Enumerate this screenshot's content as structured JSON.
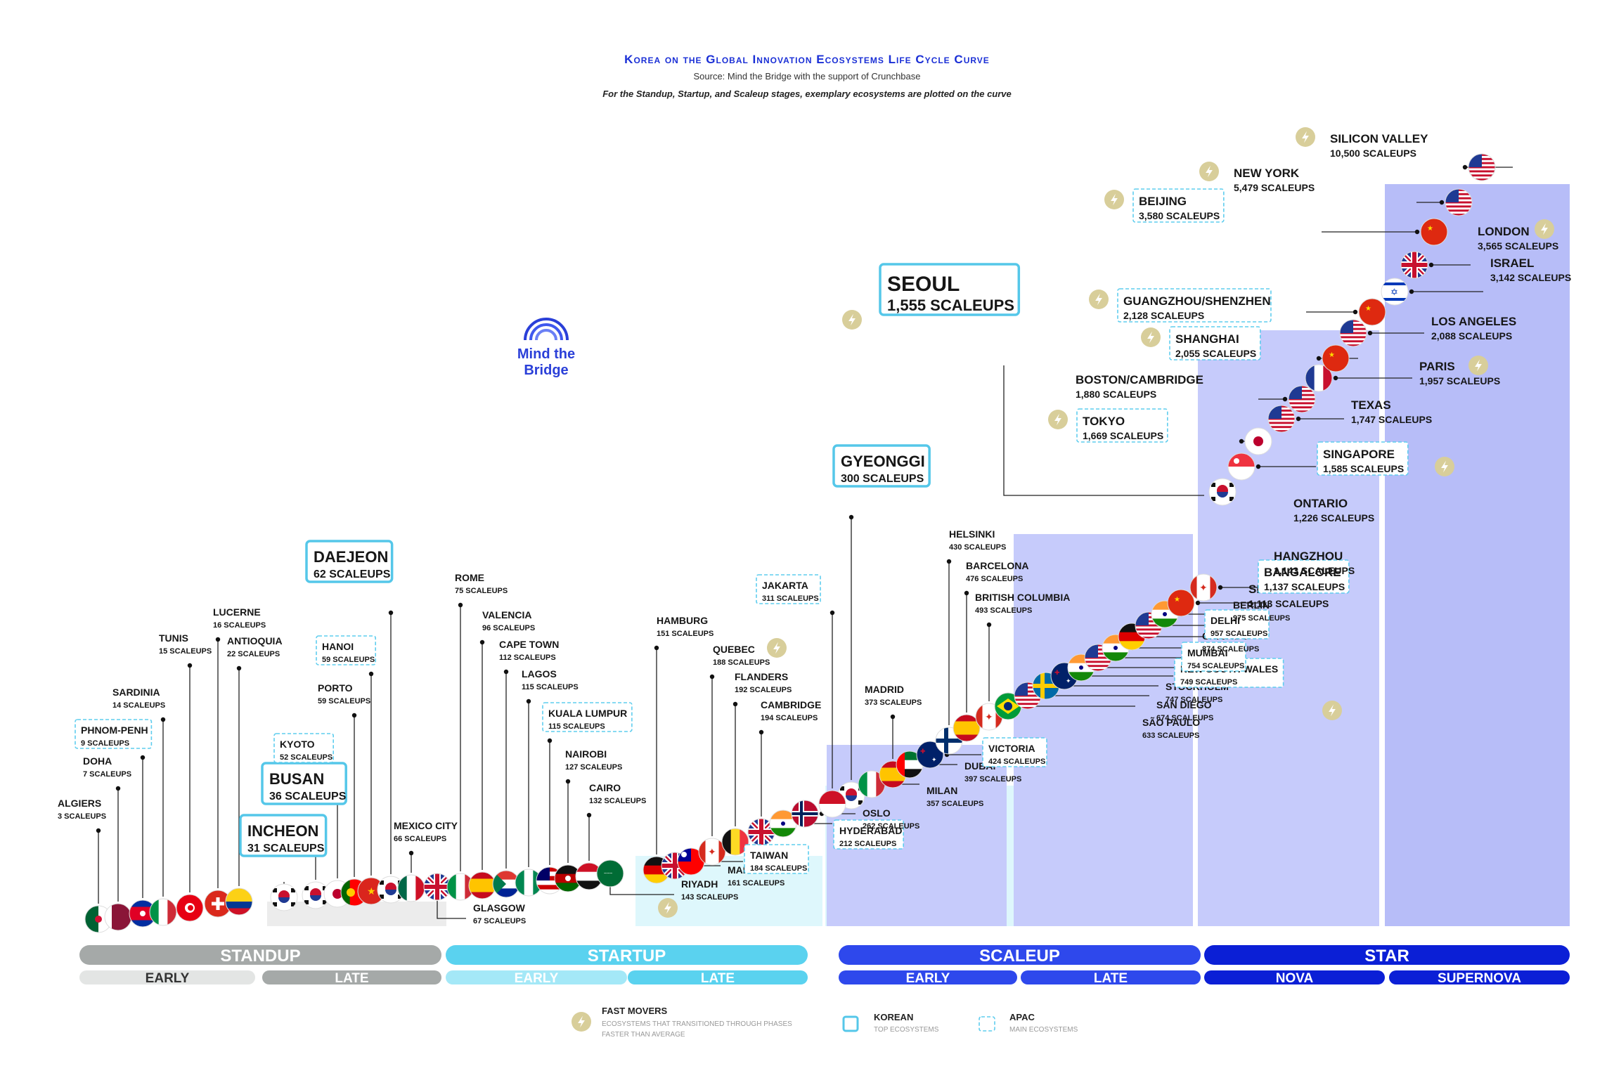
{
  "header": {
    "title": "Korea on the Global Innovation Ecosystems Life Cycle Curve",
    "source": "Source: Mind the Bridge with the support of Crunchbase",
    "note": "For the Standup, Startup, and Scaleup stages, exemplary ecosystems are plotted on the curve"
  },
  "logo": {
    "text": "Mind the Bridge",
    "icon": "bridge-arcs-icon"
  },
  "colors": {
    "standup": "#a5a9a8",
    "standup_early": "#e3e5e4",
    "startup": "#5ad2ef",
    "startup_early": "#a4e8f7",
    "scaleup": "#2e48ec",
    "star": "#0b1fd6",
    "band_startup": "#def7fc",
    "band_scaleup": "#c6cbfb",
    "fast_mover": "#d8ce9a",
    "korean_box": "#55c7e9",
    "apac_box": "#5fcdee"
  },
  "stages": [
    {
      "label": "STANDUP",
      "subs": [
        "EARLY",
        "LATE"
      ]
    },
    {
      "label": "STARTUP",
      "subs": [
        "EARLY",
        "LATE"
      ]
    },
    {
      "label": "SCALEUP",
      "subs": [
        "EARLY",
        "LATE"
      ]
    },
    {
      "label": "STAR",
      "subs": [
        "NOVA",
        "SUPERNOVA"
      ]
    }
  ],
  "legend": {
    "fast_title": "FAST MOVERS",
    "fast_desc": [
      "ECOSYSTEMS THAT TRANSITIONED THROUGH PHASES",
      "FASTER THAN AVERAGE"
    ],
    "korean_title": "KOREAN",
    "korean_desc": "TOP ECOSYSTEMS",
    "apac_title": "APAC",
    "apac_desc": "MAIN ECOSYSTEMS"
  },
  "unit": "SCALEUPS",
  "chart_data": {
    "type": "scatter",
    "title": "Korea on the Global Innovation Ecosystems Life Cycle Curve",
    "y_unit": "scaleups",
    "points": [
      {
        "name": "ALGIERS",
        "value": 3,
        "flag": "algeria"
      },
      {
        "name": "DOHA",
        "value": 7,
        "flag": "qatar"
      },
      {
        "name": "PHNOM-PENH",
        "value": 9,
        "flag": "cambodia",
        "apac": true
      },
      {
        "name": "SARDINIA",
        "value": 14,
        "flag": "italy"
      },
      {
        "name": "TUNIS",
        "value": 15,
        "flag": "tunisia"
      },
      {
        "name": "LUCERNE",
        "value": 16,
        "flag": "switzerland"
      },
      {
        "name": "ANTIOQUIA",
        "value": 22,
        "flag": "colombia"
      },
      {
        "name": "INCHEON",
        "value": 31,
        "flag": "korea",
        "korean": true
      },
      {
        "name": "BUSAN",
        "value": 36,
        "flag": "korea",
        "korean": true
      },
      {
        "name": "KYOTO",
        "value": 52,
        "flag": "japan",
        "apac": true
      },
      {
        "name": "PORTO",
        "value": 59,
        "flag": "portugal"
      },
      {
        "name": "HANOI",
        "value": 59,
        "flag": "vietnam",
        "apac": true
      },
      {
        "name": "DAEJEON",
        "value": 62,
        "flag": "korea",
        "korean": true
      },
      {
        "name": "MEXICO CITY",
        "value": 66,
        "flag": "mexico"
      },
      {
        "name": "GLASGOW",
        "value": 67,
        "flag": "uk"
      },
      {
        "name": "ROME",
        "value": 75,
        "flag": "italy"
      },
      {
        "name": "VALENCIA",
        "value": 96,
        "flag": "spain"
      },
      {
        "name": "CAPE TOWN",
        "value": 112,
        "flag": "south-africa"
      },
      {
        "name": "LAGOS",
        "value": 115,
        "flag": "nigeria"
      },
      {
        "name": "KUALA LUMPUR",
        "value": 115,
        "flag": "malaysia",
        "apac": true
      },
      {
        "name": "NAIROBI",
        "value": 127,
        "flag": "kenya"
      },
      {
        "name": "CAIRO",
        "value": 132,
        "flag": "egypt"
      },
      {
        "name": "RIYADH",
        "value": 143,
        "flag": "saudi",
        "fast": true
      },
      {
        "name": "HAMBURG",
        "value": 151,
        "flag": "germany"
      },
      {
        "name": "MANCHESTER",
        "value": 161,
        "flag": "uk"
      },
      {
        "name": "TAIWAN",
        "value": 184,
        "flag": "taiwan",
        "apac": true
      },
      {
        "name": "QUEBEC",
        "value": 188,
        "flag": "canada",
        "fast": true
      },
      {
        "name": "FLANDERS",
        "value": 192,
        "flag": "belgium"
      },
      {
        "name": "CAMBRIDGE",
        "value": 194,
        "flag": "uk"
      },
      {
        "name": "HYDERABAD",
        "value": 212,
        "flag": "india",
        "apac": true
      },
      {
        "name": "OSLO",
        "value": 262,
        "flag": "norway"
      },
      {
        "name": "GYEONGGI",
        "value": 300,
        "flag": "korea",
        "korean": true
      },
      {
        "name": "JAKARTA",
        "value": 311,
        "flag": "indonesia",
        "apac": true
      },
      {
        "name": "MILAN",
        "value": 357,
        "flag": "italy"
      },
      {
        "name": "MADRID",
        "value": 373,
        "flag": "spain"
      },
      {
        "name": "DUBAI",
        "value": 397,
        "flag": "uae"
      },
      {
        "name": "VICTORIA",
        "value": 424,
        "flag": "australia",
        "apac": true
      },
      {
        "name": "HELSINKI",
        "value": 430,
        "flag": "finland"
      },
      {
        "name": "BARCELONA",
        "value": 476,
        "flag": "spain"
      },
      {
        "name": "BRITISH COLUMBIA",
        "value": 493,
        "flag": "canada"
      },
      {
        "name": "SÃO PAULO",
        "value": 633,
        "flag": "brazil"
      },
      {
        "name": "SAN DIEGO",
        "value": 674,
        "flag": "usa",
        "fast": true
      },
      {
        "name": "STOCKHOLM",
        "value": 747,
        "flag": "sweden"
      },
      {
        "name": "NEW SOUTH WALES",
        "value": 749,
        "flag": "australia",
        "apac": true
      },
      {
        "name": "MUMBAI",
        "value": 754,
        "flag": "india",
        "apac": true
      },
      {
        "name": "CHICAGO",
        "value": 874,
        "flag": "usa"
      },
      {
        "name": "DELHI",
        "value": 957,
        "flag": "india",
        "apac": true
      },
      {
        "name": "BERLIN",
        "value": 975,
        "flag": "germany"
      },
      {
        "name": "SEATTLE",
        "value": 1113,
        "flag": "usa"
      },
      {
        "name": "BANGALORE",
        "value": 1137,
        "flag": "india",
        "apac": true
      },
      {
        "name": "HANGZHOU",
        "value": 1143,
        "flag": "china"
      },
      {
        "name": "ONTARIO",
        "value": 1226,
        "flag": "canada"
      },
      {
        "name": "SEOUL",
        "value": 1555,
        "flag": "korea",
        "korean": true,
        "fast": true
      },
      {
        "name": "SINGAPORE",
        "value": 1585,
        "flag": "singapore",
        "apac": true,
        "fast": true
      },
      {
        "name": "TOKYO",
        "value": 1669,
        "flag": "japan",
        "apac": true,
        "fast": true
      },
      {
        "name": "TEXAS",
        "value": 1747,
        "flag": "usa"
      },
      {
        "name": "BOSTON/CAMBRIDGE",
        "value": 1880,
        "flag": "usa"
      },
      {
        "name": "PARIS",
        "value": 1957,
        "flag": "france",
        "fast": true
      },
      {
        "name": "SHANGHAI",
        "value": 2055,
        "flag": "china",
        "apac": true,
        "fast": true
      },
      {
        "name": "LOS ANGELES",
        "value": 2088,
        "flag": "usa"
      },
      {
        "name": "GUANGZHOU/SHENZHEN",
        "value": 2128,
        "flag": "china",
        "apac": true,
        "fast": true
      },
      {
        "name": "ISRAEL",
        "value": 3142,
        "flag": "israel"
      },
      {
        "name": "LONDON",
        "value": 3565,
        "flag": "uk",
        "fast": true
      },
      {
        "name": "BEIJING",
        "value": 3580,
        "flag": "china",
        "apac": true,
        "fast": true
      },
      {
        "name": "NEW YORK",
        "value": 5479,
        "flag": "usa",
        "fast": true
      },
      {
        "name": "SILICON VALLEY",
        "value": 10500,
        "flag": "usa",
        "fast": true
      }
    ]
  }
}
